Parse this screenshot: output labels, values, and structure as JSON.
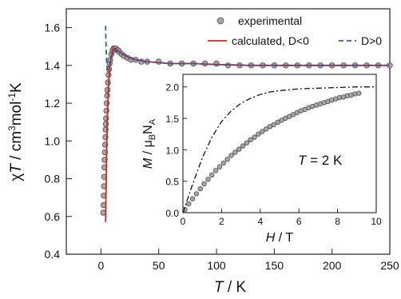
{
  "chart_data": [
    {
      "type": "scatter",
      "xlabel": "T / K",
      "ylabel": "χT / cm³mol⁻¹K",
      "xlim": [
        -30,
        250
      ],
      "ylim": [
        0.4,
        1.7
      ],
      "xticks": [
        "0",
        "50",
        "100",
        "150",
        "200",
        "250"
      ],
      "yticks": [
        "0.4",
        "0.6",
        "0.8",
        "1.0",
        "1.2",
        "1.4",
        "1.6"
      ],
      "legend": {
        "placement": "top-right",
        "entries": [
          "experimental",
          "calculated, D<0",
          "D>0"
        ]
      },
      "series": [
        {
          "name": "experimental",
          "style": "grey circles",
          "x": [
            2,
            2.2,
            2.4,
            2.6,
            2.8,
            3.0,
            3.2,
            3.4,
            3.6,
            3.8,
            4.0,
            4.2,
            4.4,
            4.7,
            5.0,
            5.3,
            5.6,
            6.0,
            6.5,
            7.0,
            7.5,
            8.0,
            9,
            10,
            11,
            12,
            13,
            14,
            15,
            16,
            18,
            20,
            23,
            26,
            30,
            35,
            40,
            50,
            60,
            70,
            80,
            90,
            100,
            110,
            120,
            130,
            140,
            150,
            160,
            170,
            180,
            190,
            200,
            210,
            220,
            230,
            240,
            250
          ],
          "y": [
            0.62,
            0.66,
            0.71,
            0.76,
            0.81,
            0.86,
            0.9,
            0.94,
            0.98,
            1.02,
            1.06,
            1.09,
            1.12,
            1.16,
            1.2,
            1.24,
            1.27,
            1.31,
            1.35,
            1.38,
            1.41,
            1.43,
            1.46,
            1.48,
            1.49,
            1.49,
            1.49,
            1.48,
            1.48,
            1.47,
            1.46,
            1.45,
            1.44,
            1.43,
            1.43,
            1.42,
            1.42,
            1.42,
            1.41,
            1.41,
            1.41,
            1.41,
            1.41,
            1.4,
            1.4,
            1.4,
            1.4,
            1.4,
            1.4,
            1.4,
            1.4,
            1.4,
            1.4,
            1.4,
            1.4,
            1.4,
            1.4,
            1.4
          ]
        },
        {
          "name": "calculated, D<0",
          "style": "solid red line",
          "color": "#e0201e",
          "x": [
            4,
            4.3,
            4.7,
            5,
            5.5,
            6,
            6.5,
            7,
            8,
            9,
            10,
            12,
            14,
            16,
            20,
            25,
            30,
            40,
            60,
            80,
            100,
            130,
            160,
            200,
            250
          ],
          "y": [
            0.57,
            0.7,
            0.85,
            0.96,
            1.1,
            1.2,
            1.28,
            1.34,
            1.41,
            1.45,
            1.48,
            1.49,
            1.48,
            1.47,
            1.455,
            1.44,
            1.43,
            1.42,
            1.41,
            1.41,
            1.405,
            1.4,
            1.4,
            1.4,
            1.4
          ]
        },
        {
          "name": "D>0",
          "style": "blue dashed line",
          "color": "#2a5db0",
          "x": [
            4,
            4.4,
            4.8,
            5.3,
            6,
            7,
            8,
            10,
            12,
            14,
            16,
            20,
            25,
            30,
            40,
            60,
            80,
            100,
            130,
            160,
            200,
            250
          ],
          "y": [
            1.61,
            1.5,
            1.43,
            1.39,
            1.38,
            1.39,
            1.42,
            1.46,
            1.48,
            1.48,
            1.47,
            1.455,
            1.44,
            1.43,
            1.42,
            1.41,
            1.41,
            1.405,
            1.4,
            1.4,
            1.4,
            1.4
          ]
        }
      ]
    },
    {
      "type": "scatter",
      "placement": "inset",
      "xlabel": "H / T",
      "ylabel": "M / μBNA",
      "annotation": "T = 2 K",
      "xlim": [
        0,
        10
      ],
      "ylim": [
        0,
        2.2
      ],
      "xticks": [
        "0",
        "2",
        "4",
        "6",
        "8",
        "10"
      ],
      "yticks": [
        "0.0",
        "0.5",
        "1.0",
        "1.5",
        "2.0"
      ],
      "series": [
        {
          "style": "grey circles",
          "x": [
            0.1,
            0.3,
            0.5,
            0.7,
            0.9,
            1.1,
            1.3,
            1.5,
            1.7,
            1.9,
            2.1,
            2.3,
            2.5,
            2.7,
            2.9,
            3.1,
            3.3,
            3.5,
            3.7,
            3.9,
            4.1,
            4.3,
            4.5,
            4.7,
            4.9,
            5.1,
            5.3,
            5.5,
            5.7,
            5.9,
            6.1,
            6.3,
            6.5,
            6.7,
            6.9,
            7.1,
            7.3,
            7.5,
            7.7,
            7.9,
            8.1,
            8.3,
            8.5,
            8.7,
            8.9,
            9.1
          ],
          "y": [
            0.05,
            0.14,
            0.22,
            0.3,
            0.38,
            0.46,
            0.53,
            0.6,
            0.67,
            0.73,
            0.79,
            0.85,
            0.91,
            0.96,
            1.01,
            1.06,
            1.11,
            1.16,
            1.2,
            1.25,
            1.29,
            1.33,
            1.37,
            1.4,
            1.44,
            1.47,
            1.5,
            1.53,
            1.56,
            1.59,
            1.62,
            1.64,
            1.67,
            1.69,
            1.71,
            1.73,
            1.75,
            1.77,
            1.79,
            1.81,
            1.83,
            1.84,
            1.86,
            1.87,
            1.89,
            1.9
          ]
        },
        {
          "style": "black dash-dot line",
          "x": [
            0,
            0.5,
            1,
            1.5,
            2,
            2.5,
            3,
            3.5,
            4,
            4.5,
            5,
            6,
            7,
            8,
            9,
            10
          ],
          "y": [
            0,
            0.45,
            0.87,
            1.2,
            1.45,
            1.62,
            1.74,
            1.82,
            1.88,
            1.92,
            1.94,
            1.97,
            1.98,
            1.99,
            2.0,
            2.0
          ]
        }
      ]
    }
  ]
}
